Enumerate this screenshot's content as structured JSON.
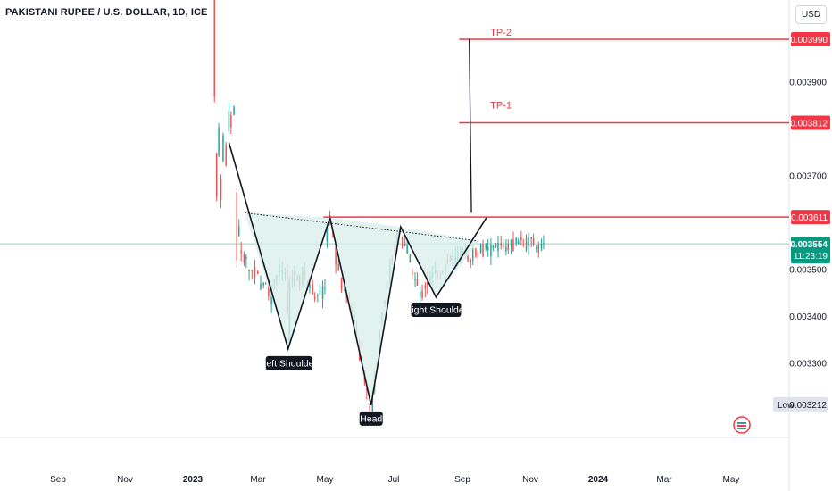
{
  "header": {
    "title": "PAKISTANI RUPEE / U.S. DOLLAR, 1D, ICE",
    "currency": "USD"
  },
  "price_axis": {
    "ticks": [
      "0.003990",
      "0.003900",
      "0.003812",
      "0.003700",
      "0.003611",
      "0.003554",
      "0.003500",
      "0.003400",
      "0.003300",
      "0.003212"
    ],
    "labels": [
      {
        "text": "0.003990",
        "color": "#f23645"
      },
      {
        "text": "0.003812",
        "color": "#f23645"
      },
      {
        "text": "0.003611",
        "color": "#f23645"
      },
      {
        "text": "0.003554",
        "color": "#089981",
        "subtext": "11:23:19"
      },
      {
        "text": "0.003212",
        "prefix": "Low",
        "color": "#ffffff"
      }
    ]
  },
  "time_axis": [
    "Sep",
    "Nov",
    "2023",
    "Mar",
    "May",
    "Jul",
    "Sep",
    "Nov",
    "2024",
    "Mar",
    "May"
  ],
  "annotations": {
    "left_shoulder": "Left Shoulder",
    "head": "Head",
    "right_shoulder": "Right Shoulder",
    "tp1": "TP-1",
    "tp2": "TP-2"
  },
  "colors": {
    "up": "#26a69a",
    "down": "#ef5350",
    "target": "#f23645",
    "fill": "#d9efeb",
    "price_line": "#089981"
  },
  "chart_data": {
    "type": "candlestick",
    "title": "PAKISTANI RUPEE / U.S. DOLLAR, 1D, ICE",
    "ylabel": "USD",
    "ylim": [
      0.00316,
      0.00408
    ],
    "price_path": [
      [
        "2023-01-27",
        0.0044
      ],
      [
        "2023-02-01",
        0.00375
      ],
      [
        "2023-02-03",
        0.00365
      ],
      [
        "2023-02-06",
        0.0038
      ],
      [
        "2023-02-09",
        0.00366
      ],
      [
        "2023-02-12",
        0.00378
      ],
      [
        "2023-02-16",
        0.00372
      ],
      [
        "2023-02-20",
        0.00385
      ],
      [
        "2023-02-23",
        0.0038
      ],
      [
        "2023-02-28",
        0.00386
      ],
      [
        "2023-03-01",
        0.00365
      ],
      [
        "2023-03-03",
        0.00352
      ],
      [
        "2023-03-06",
        0.0036
      ],
      [
        "2023-03-09",
        0.00352
      ],
      [
        "2023-03-14",
        0.00353
      ],
      [
        "2023-03-20",
        0.0035
      ],
      [
        "2023-03-30",
        0.00349
      ],
      [
        "2023-04-05",
        0.00346
      ],
      [
        "2023-04-12",
        0.00348
      ],
      [
        "2023-04-18",
        0.00344
      ],
      [
        "2023-04-25",
        0.00349
      ],
      [
        "2023-05-03",
        0.0035
      ],
      [
        "2023-05-10",
        0.00349
      ],
      [
        "2023-05-13",
        0.00335
      ],
      [
        "2023-05-15",
        0.00347
      ],
      [
        "2023-05-22",
        0.00348
      ],
      [
        "2023-05-29",
        0.00347
      ],
      [
        "2023-06-05",
        0.00349
      ],
      [
        "2023-06-12",
        0.00346
      ],
      [
        "2023-06-19",
        0.00345
      ],
      [
        "2023-06-26",
        0.00344
      ],
      [
        "2023-07-03",
        0.00347
      ],
      [
        "2023-07-06",
        0.00359
      ],
      [
        "2023-07-10",
        0.00361
      ],
      [
        "2023-07-14",
        0.00357
      ],
      [
        "2023-07-18",
        0.00352
      ],
      [
        "2023-07-24",
        0.00347
      ],
      [
        "2023-07-31",
        0.00345
      ],
      [
        "2023-08-07",
        0.00343
      ],
      [
        "2023-08-14",
        0.00338
      ],
      [
        "2023-08-21",
        0.0033
      ],
      [
        "2023-08-28",
        0.00326
      ],
      [
        "2023-09-01",
        0.00322
      ],
      [
        "2023-09-05",
        0.00321
      ],
      [
        "2023-09-08",
        0.00325
      ],
      [
        "2023-09-13",
        0.0033
      ],
      [
        "2023-09-18",
        0.00338
      ],
      [
        "2023-09-25",
        0.00345
      ],
      [
        "2023-10-02",
        0.00351
      ],
      [
        "2023-10-09",
        0.00356
      ],
      [
        "2023-10-14",
        0.00359
      ],
      [
        "2023-10-18",
        0.00357
      ],
      [
        "2023-10-25",
        0.00354
      ],
      [
        "2023-11-01",
        0.0035
      ],
      [
        "2023-11-08",
        0.00346
      ],
      [
        "2023-11-13",
        0.00344
      ],
      [
        "2023-11-20",
        0.00347
      ],
      [
        "2023-11-27",
        0.00348
      ],
      [
        "2023-12-04",
        0.00349
      ],
      [
        "2023-12-11",
        0.0035
      ],
      [
        "2023-12-18",
        0.00351
      ],
      [
        "2023-12-25",
        0.00352
      ],
      [
        "2024-01-01",
        0.00352
      ],
      [
        "2024-01-08",
        0.00353
      ],
      [
        "2024-01-15",
        0.00353
      ],
      [
        "2024-01-22",
        0.00353
      ],
      [
        "2024-01-29",
        0.00354
      ],
      [
        "2024-02-05",
        0.00354
      ],
      [
        "2024-02-12",
        0.00354
      ],
      [
        "2024-02-19",
        0.00354
      ],
      [
        "2024-02-26",
        0.00355
      ],
      [
        "2024-03-04",
        0.00355
      ],
      [
        "2024-03-11",
        0.00355
      ],
      [
        "2024-03-18",
        0.00355
      ],
      [
        "2024-03-25",
        0.00356
      ],
      [
        "2024-04-01",
        0.00356
      ],
      [
        "2024-04-08",
        0.00355
      ],
      [
        "2024-04-15",
        0.00356
      ],
      [
        "2024-04-22",
        0.00355
      ],
      [
        "2024-04-29",
        0.00355
      ],
      [
        "2024-05-03",
        0.003554
      ]
    ],
    "pattern": {
      "name": "Inverse head and shoulders",
      "points": [
        [
          "2023-02-20",
          0.00377
        ],
        [
          "2023-05-13",
          0.00333
        ],
        [
          "2023-07-10",
          0.00361
        ],
        [
          "2023-09-05",
          0.00321
        ],
        [
          "2023-10-16",
          0.00359
        ],
        [
          "2023-12-04",
          0.00344
        ],
        [
          "2024-02-12",
          0.00361
        ]
      ],
      "neckline": [
        [
          "2023-03-14",
          0.00362
        ],
        [
          "2024-02-01",
          0.00356
        ]
      ]
    },
    "levels": {
      "breakout": 0.003611,
      "tp1": 0.003812,
      "tp2": 0.00399,
      "last": 0.003554,
      "low": 0.003212
    }
  }
}
